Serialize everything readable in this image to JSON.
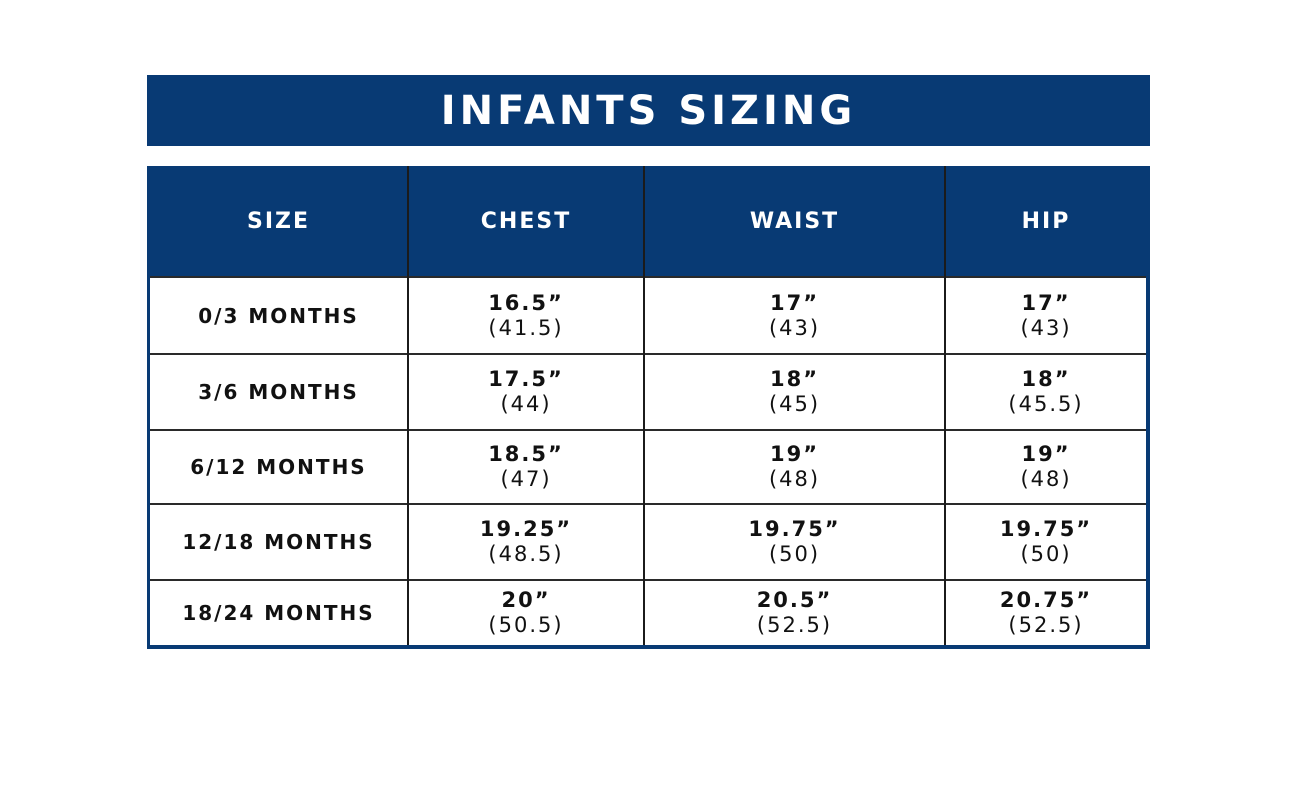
{
  "title": "INFANTS SIZING",
  "headers": {
    "size": "SIZE",
    "chest": "CHEST",
    "waist": "WAIST",
    "hip": "HIP"
  },
  "rows": [
    {
      "size": "0/3 MONTHS",
      "chest_in": "16.5”",
      "chest_cm": "(41.5)",
      "waist_in": "17”",
      "waist_cm": "(43)",
      "hip_in": "17”",
      "hip_cm": "(43)"
    },
    {
      "size": "3/6 MONTHS",
      "chest_in": "17.5”",
      "chest_cm": "(44)",
      "waist_in": "18”",
      "waist_cm": "(45)",
      "hip_in": "18”",
      "hip_cm": "(45.5)"
    },
    {
      "size": "6/12 MONTHS",
      "chest_in": "18.5”",
      "chest_cm": "(47)",
      "waist_in": "19”",
      "waist_cm": "(48)",
      "hip_in": "19”",
      "hip_cm": "(48)"
    },
    {
      "size": "12/18 MONTHS",
      "chest_in": "19.25”",
      "chest_cm": "(48.5)",
      "waist_in": "19.75”",
      "waist_cm": "(50)",
      "hip_in": "19.75”",
      "hip_cm": "(50)"
    },
    {
      "size": "18/24 MONTHS",
      "chest_in": "20”",
      "chest_cm": "(50.5)",
      "waist_in": "20.5”",
      "waist_cm": "(52.5)",
      "hip_in": "20.75”",
      "hip_cm": "(52.5)"
    }
  ],
  "colors": {
    "header_background": "#083a74",
    "header_text": "#ffffff",
    "cell_text": "#111111"
  }
}
